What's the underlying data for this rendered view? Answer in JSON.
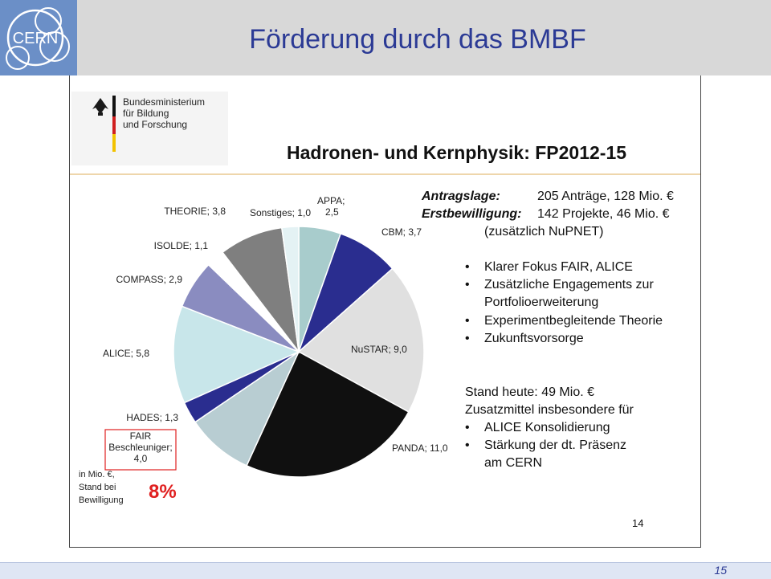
{
  "header": {
    "title": "Förderung durch das BMBF",
    "logo_text": "CERN"
  },
  "ministry": {
    "line1": "Bundesministerium",
    "line2": "für Bildung",
    "line3": "und Forschung"
  },
  "slide_title": "Hadronen- und Kernphysik: FP2012-15",
  "info": {
    "antragslage_label": "Antragslage:",
    "antragslage_value": "205 Anträge, 128 Mio. €",
    "erstbewilligung_label": "Erstbewilligung:",
    "erstbewilligung_value": "142 Projekte, 46 Mio. €",
    "nupnet": "(zusätzlich NuPNET)"
  },
  "bullets1": [
    {
      "text": "Klarer Fokus FAIR, ALICE"
    },
    {
      "line1": "Zusätzliche Engagements zur",
      "line2": "Portfolioerweiterung"
    },
    {
      "text": "Experimentbegleitende Theorie"
    },
    {
      "text": "Zukunftsvorsorge"
    }
  ],
  "stand": {
    "line1": "Stand heute: 49 Mio. €",
    "line2": "Zusatzmittel insbesondere für"
  },
  "bullets2": [
    {
      "text": "ALICE Konsolidierung"
    },
    {
      "line1": "Stärkung der dt. Präsenz",
      "line2": "am CERN"
    }
  ],
  "note": {
    "line1": "in Mio. €,",
    "line2": "Stand bei",
    "line3": "Bewilligung"
  },
  "highlight_percent": "8%",
  "inner_page_number": "14",
  "page_number": "15",
  "chart_data": {
    "type": "pie",
    "unit": "Mio. €",
    "slices": [
      {
        "name": "APPA",
        "value": 2.5,
        "label_line1": "APPA;",
        "label_line2": "2,5",
        "color": "#a8cccc"
      },
      {
        "name": "CBM",
        "value": 3.7,
        "label_line1": "CBM; 3,7",
        "color": "#2a2d8f"
      },
      {
        "name": "NuSTAR",
        "value": 9.0,
        "label_line1": "NuSTAR; 9,0",
        "color": "#e0e0e0"
      },
      {
        "name": "PANDA",
        "value": 11.0,
        "label_line1": "PANDA; 11,0",
        "color": "#101010"
      },
      {
        "name": "FAIR Beschleuniger",
        "value": 4.0,
        "label_line1": "FAIR",
        "label_line2": "Beschleuniger;",
        "label_line3": "4,0",
        "color": "#b8cdd2"
      },
      {
        "name": "HADES",
        "value": 1.3,
        "label_line1": "HADES; 1,3",
        "color": "#2a2d8f"
      },
      {
        "name": "ALICE",
        "value": 5.8,
        "label_line1": "ALICE; 5,8",
        "color": "#c8e6ea"
      },
      {
        "name": "COMPASS",
        "value": 2.9,
        "label_line1": "COMPASS; 2,9",
        "color": "#8a8cc0"
      },
      {
        "name": "ISOLDE",
        "value": 1.1,
        "label_line1": "ISOLDE; 1,1",
        "color": "#ffffff"
      },
      {
        "name": "THEORIE",
        "value": 3.8,
        "label_line1": "THEORIE; 3,8",
        "color": "#7f7f7f"
      },
      {
        "name": "Sonstiges",
        "value": 1.0,
        "label_line1": "Sonstiges; 1,0",
        "color": "#e4f2f4"
      }
    ],
    "highlight_color": "#e02020"
  }
}
